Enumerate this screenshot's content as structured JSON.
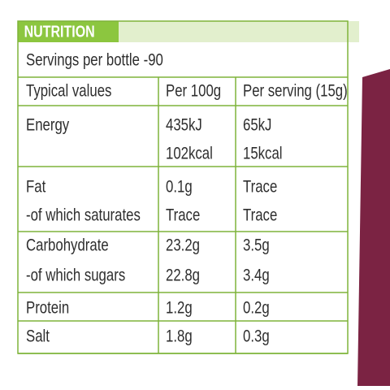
{
  "header": {
    "title": "NUTRITION"
  },
  "servings": "Servings per bottle -90",
  "table": {
    "columns": [
      "Typical values",
      "Per 100g",
      "Per serving (15g)"
    ],
    "rows": [
      [
        [
          "Energy"
        ],
        [
          "435kJ",
          "102kcal"
        ],
        [
          "65kJ",
          "15kcal"
        ]
      ],
      [
        [
          "Fat",
          "-of which saturates"
        ],
        [
          "0.1g",
          "Trace"
        ],
        [
          "Trace",
          "Trace"
        ]
      ],
      [
        [
          "Carbohydrate",
          "-of which sugars"
        ],
        [
          "23.2g",
          "22.8g"
        ],
        [
          "3.5g",
          "3.4g"
        ]
      ],
      [
        [
          "Protein"
        ],
        [
          "1.2g"
        ],
        [
          "0.2g"
        ]
      ],
      [
        [
          "Salt"
        ],
        [
          "1.8g"
        ],
        [
          "0.3g"
        ]
      ]
    ]
  }
}
